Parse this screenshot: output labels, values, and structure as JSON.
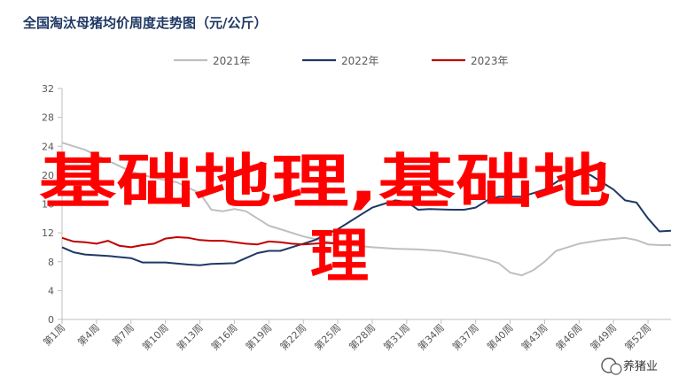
{
  "chart_data": {
    "type": "line",
    "title": "全国淘汰母猪均价周度走势图（元/公斤）",
    "ylim": [
      0,
      32
    ],
    "yticks": [
      0,
      4,
      8,
      12,
      16,
      20,
      24,
      28,
      32
    ],
    "xticks": [
      "第1周",
      "第4周",
      "第7周",
      "第10周",
      "第13周",
      "第16周",
      "第19周",
      "第22周",
      "第25周",
      "第28周",
      "第31周",
      "第34周",
      "第37周",
      "第40周",
      "第43周",
      "第46周",
      "第49周",
      "第52周"
    ],
    "legend_position": "top",
    "series": [
      {
        "name": "2021年",
        "color": "#bfbfbf",
        "values": [
          {
            "week": 1,
            "value": 24.5
          },
          {
            "week": 3,
            "value": 23.5
          },
          {
            "week": 5,
            "value": 22.0
          },
          {
            "week": 7,
            "value": 20.5
          },
          {
            "week": 9,
            "value": 19.6
          },
          {
            "week": 11,
            "value": 19.0
          },
          {
            "week": 13,
            "value": 17.5
          },
          {
            "week": 14,
            "value": 15.2
          },
          {
            "week": 15,
            "value": 15.0
          },
          {
            "week": 16,
            "value": 15.3
          },
          {
            "week": 17,
            "value": 15.0
          },
          {
            "week": 18,
            "value": 14.0
          },
          {
            "week": 19,
            "value": 13.0
          },
          {
            "week": 20,
            "value": 12.5
          },
          {
            "week": 22,
            "value": 11.5
          },
          {
            "week": 24,
            "value": 10.8
          },
          {
            "week": 26,
            "value": 10.3
          },
          {
            "week": 28,
            "value": 10.0
          },
          {
            "week": 30,
            "value": 9.8
          },
          {
            "week": 32,
            "value": 9.7
          },
          {
            "week": 34,
            "value": 9.5
          },
          {
            "week": 36,
            "value": 9.0
          },
          {
            "week": 38,
            "value": 8.3
          },
          {
            "week": 39,
            "value": 7.8
          },
          {
            "week": 40,
            "value": 6.5
          },
          {
            "week": 41,
            "value": 6.1
          },
          {
            "week": 42,
            "value": 6.8
          },
          {
            "week": 43,
            "value": 8.0
          },
          {
            "week": 44,
            "value": 9.5
          },
          {
            "week": 46,
            "value": 10.5
          },
          {
            "week": 48,
            "value": 11.0
          },
          {
            "week": 50,
            "value": 11.3
          },
          {
            "week": 51,
            "value": 11.0
          },
          {
            "week": 52,
            "value": 10.4
          },
          {
            "week": 53,
            "value": 10.3
          },
          {
            "week": 54,
            "value": 10.3
          }
        ]
      },
      {
        "name": "2022年",
        "color": "#1f3864",
        "values": [
          {
            "week": 1,
            "value": 10.0
          },
          {
            "week": 2,
            "value": 9.3
          },
          {
            "week": 3,
            "value": 9.0
          },
          {
            "week": 5,
            "value": 8.8
          },
          {
            "week": 7,
            "value": 8.5
          },
          {
            "week": 8,
            "value": 7.9
          },
          {
            "week": 10,
            "value": 7.9
          },
          {
            "week": 12,
            "value": 7.6
          },
          {
            "week": 13,
            "value": 7.5
          },
          {
            "week": 14,
            "value": 7.7
          },
          {
            "week": 16,
            "value": 7.8
          },
          {
            "week": 17,
            "value": 8.5
          },
          {
            "week": 18,
            "value": 9.2
          },
          {
            "week": 19,
            "value": 9.5
          },
          {
            "week": 20,
            "value": 9.5
          },
          {
            "week": 21,
            "value": 10.0
          },
          {
            "week": 22,
            "value": 10.5
          },
          {
            "week": 23,
            "value": 11.0
          },
          {
            "week": 24,
            "value": 11.8
          },
          {
            "week": 25,
            "value": 12.5
          },
          {
            "week": 26,
            "value": 13.5
          },
          {
            "week": 27,
            "value": 14.5
          },
          {
            "week": 28,
            "value": 15.5
          },
          {
            "week": 29,
            "value": 16.0
          },
          {
            "week": 30,
            "value": 16.5
          },
          {
            "week": 31,
            "value": 16.3
          },
          {
            "week": 32,
            "value": 15.2
          },
          {
            "week": 33,
            "value": 15.3
          },
          {
            "week": 35,
            "value": 15.2
          },
          {
            "week": 36,
            "value": 15.2
          },
          {
            "week": 37,
            "value": 15.5
          },
          {
            "week": 38,
            "value": 16.5
          },
          {
            "week": 39,
            "value": 17.0
          },
          {
            "week": 41,
            "value": 17.0
          },
          {
            "week": 42,
            "value": 17.5
          },
          {
            "week": 43,
            "value": 18.0
          },
          {
            "week": 44,
            "value": 19.0
          },
          {
            "week": 45,
            "value": 20.0
          },
          {
            "week": 46,
            "value": 20.5
          },
          {
            "week": 47,
            "value": 20.0
          },
          {
            "week": 48,
            "value": 19.0
          },
          {
            "week": 49,
            "value": 18.0
          },
          {
            "week": 50,
            "value": 16.5
          },
          {
            "week": 51,
            "value": 16.2
          },
          {
            "week": 52,
            "value": 14.0
          },
          {
            "week": 53,
            "value": 12.2
          },
          {
            "week": 54,
            "value": 12.3
          }
        ]
      },
      {
        "name": "2023年",
        "color": "#c00000",
        "values": [
          {
            "week": 1,
            "value": 11.3
          },
          {
            "week": 2,
            "value": 10.8
          },
          {
            "week": 3,
            "value": 10.7
          },
          {
            "week": 4,
            "value": 10.5
          },
          {
            "week": 5,
            "value": 10.9
          },
          {
            "week": 6,
            "value": 10.2
          },
          {
            "week": 7,
            "value": 10.0
          },
          {
            "week": 8,
            "value": 10.3
          },
          {
            "week": 9,
            "value": 10.5
          },
          {
            "week": 10,
            "value": 11.2
          },
          {
            "week": 11,
            "value": 11.4
          },
          {
            "week": 12,
            "value": 11.3
          },
          {
            "week": 13,
            "value": 11.0
          },
          {
            "week": 14,
            "value": 10.9
          },
          {
            "week": 15,
            "value": 10.9
          },
          {
            "week": 16,
            "value": 10.7
          },
          {
            "week": 17,
            "value": 10.5
          },
          {
            "week": 18,
            "value": 10.4
          },
          {
            "week": 19,
            "value": 10.8
          },
          {
            "week": 20,
            "value": 10.7
          },
          {
            "week": 21,
            "value": 10.5
          },
          {
            "week": 22,
            "value": 10.4
          },
          {
            "week": 23,
            "value": 10.5
          },
          {
            "week": 24,
            "value": 10.6
          },
          {
            "week": 25,
            "value": 10.5
          }
        ]
      }
    ]
  },
  "overlay": {
    "line1": "基础地理,基础地",
    "line2": "理"
  },
  "watermark": {
    "text": "养猪业"
  },
  "colors": {
    "overlay_text": "#ff0000",
    "axis": "#bfbfbf",
    "tick_text": "#595959"
  }
}
